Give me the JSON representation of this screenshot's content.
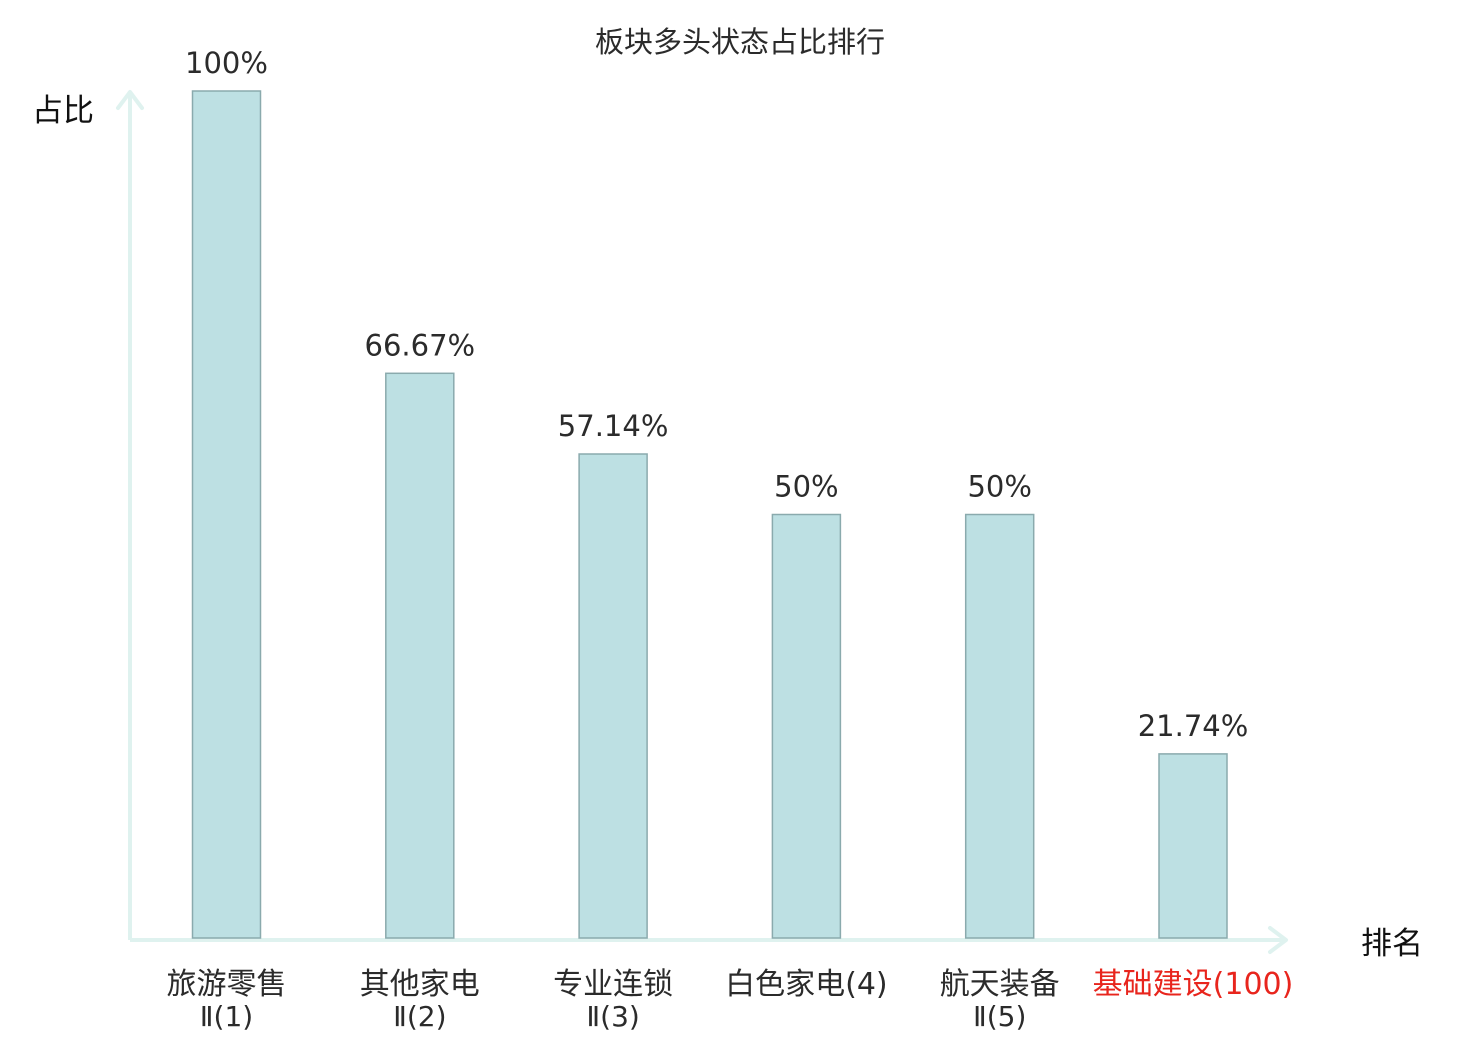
{
  "chart_data": {
    "type": "bar",
    "title": "板块多头状态占比排行",
    "ylabel": "占比",
    "xlabel": "排名",
    "ylim": [
      0,
      100
    ],
    "grid": false,
    "legend": "none",
    "categories": [
      {
        "line1": "旅游零售",
        "line2": "Ⅱ(1)",
        "highlight": false
      },
      {
        "line1": "其他家电",
        "line2": "Ⅱ(2)",
        "highlight": false
      },
      {
        "line1": "专业连锁",
        "line2": "Ⅱ(3)",
        "highlight": false
      },
      {
        "line1": "白色家电(4)",
        "line2": "",
        "highlight": false
      },
      {
        "line1": "航天装备",
        "line2": "Ⅱ(5)",
        "highlight": false
      },
      {
        "line1": "基础建设(100)",
        "line2": "",
        "highlight": true
      }
    ],
    "values": [
      100,
      66.67,
      57.14,
      50,
      50,
      21.74
    ],
    "value_labels": [
      "100%",
      "66.67%",
      "57.14%",
      "50%",
      "50%",
      "21.74%"
    ]
  },
  "colors": {
    "bar_fill": "#bde0e3",
    "bar_stroke": "#8aaaad",
    "axis": "#dff2ef",
    "text": "#2b2b2b",
    "highlight": "#e8251d"
  }
}
